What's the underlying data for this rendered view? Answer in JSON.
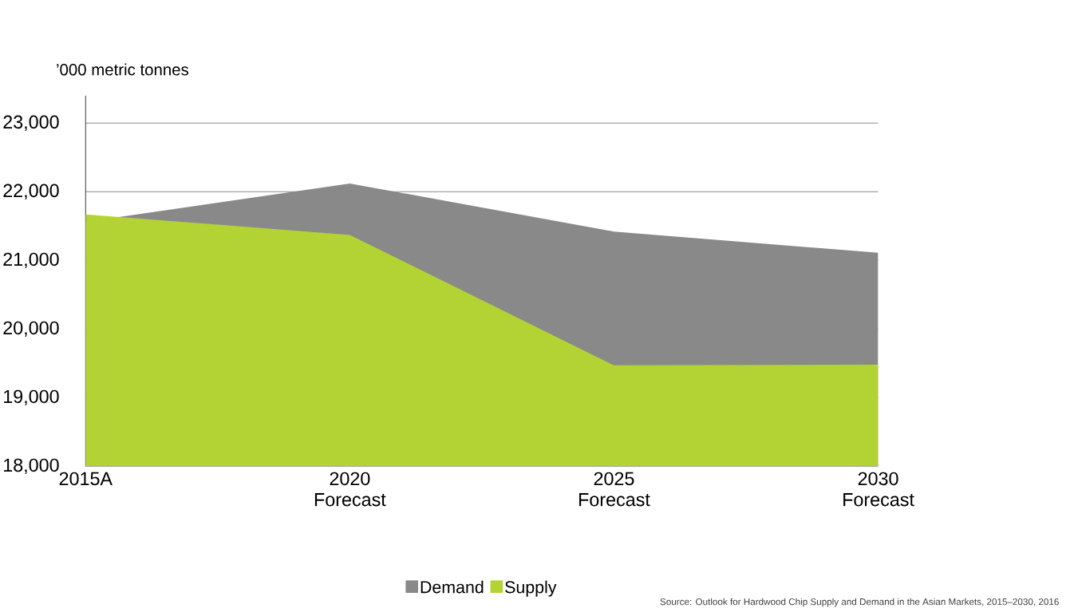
{
  "chart_data": {
    "type": "area",
    "ylabel": "’000 metric tonnes",
    "categories": [
      "2015A",
      "2020 Forecast",
      "2025 Forecast",
      "2030 Forecast"
    ],
    "series": [
      {
        "name": "Demand",
        "color": "#898989",
        "values": [
          21560,
          22120,
          21420,
          21110
        ]
      },
      {
        "name": "Supply",
        "color": "#b3d334",
        "values": [
          21670,
          21370,
          19470,
          19480
        ]
      }
    ],
    "ylim": [
      18000,
      23400
    ],
    "yticks": [
      {
        "value": 18000,
        "label": "18,000"
      },
      {
        "value": 19000,
        "label": "19,000"
      },
      {
        "value": 20000,
        "label": "20,000"
      },
      {
        "value": 21000,
        "label": "21,000"
      },
      {
        "value": 22000,
        "label": "22,000"
      },
      {
        "value": 23000,
        "label": "23,000"
      }
    ],
    "grid": "y",
    "legend": "bottom",
    "annotations": [
      "Source: Outlook for Hardwood Chip Supply and Demand in the Asian Markets, 2015–2030, 2016"
    ]
  }
}
